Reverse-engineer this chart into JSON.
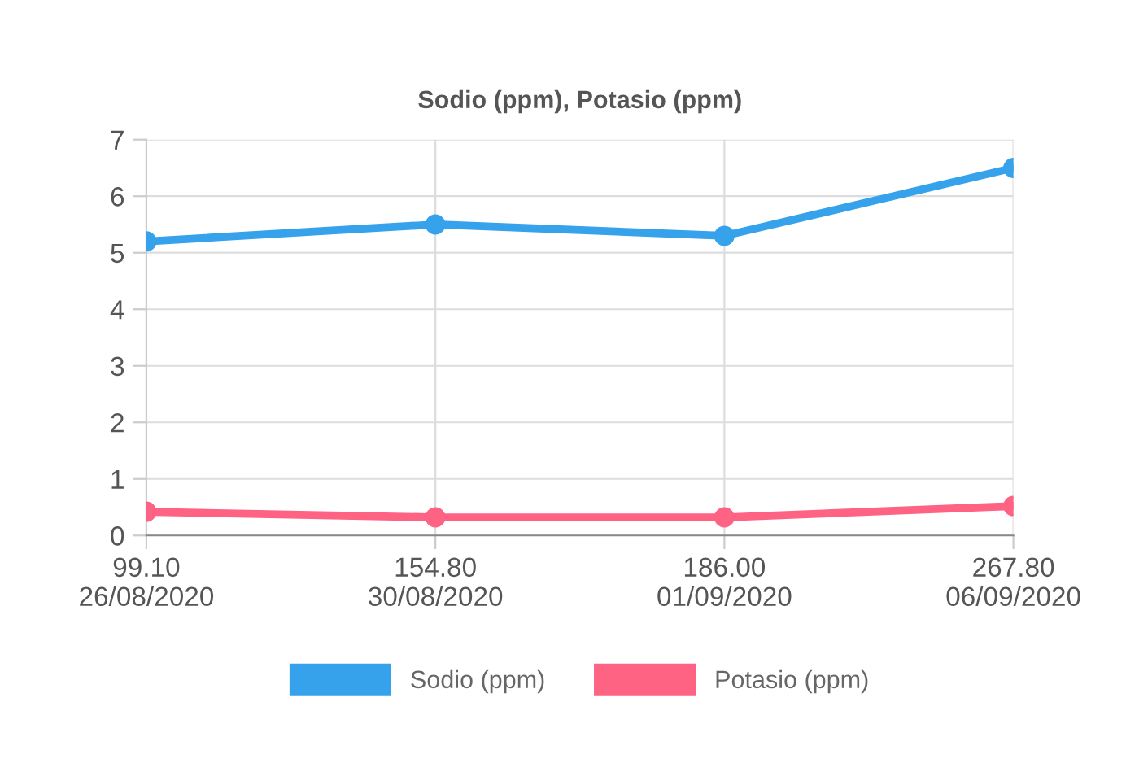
{
  "chart_data": {
    "type": "line",
    "title": "Sodio (ppm), Potasio (ppm)",
    "categories": [
      "99.10\n26/08/2020",
      "154.80\n30/08/2020",
      "186.00\n01/09/2020",
      "267.80\n06/09/2020"
    ],
    "series": [
      {
        "name": "Sodio (ppm)",
        "color": "#36a2eb",
        "values": [
          5.2,
          5.5,
          5.3,
          6.5
        ]
      },
      {
        "name": "Potasio (ppm)",
        "color": "#ff6384",
        "values": [
          0.42,
          0.32,
          0.32,
          0.52
        ]
      }
    ],
    "ylim": [
      0,
      7
    ],
    "yticks": [
      0,
      1,
      2,
      3,
      4,
      5,
      6,
      7
    ],
    "grid": true,
    "legend": "bottom",
    "marker": "circle",
    "line_style": "solid"
  }
}
